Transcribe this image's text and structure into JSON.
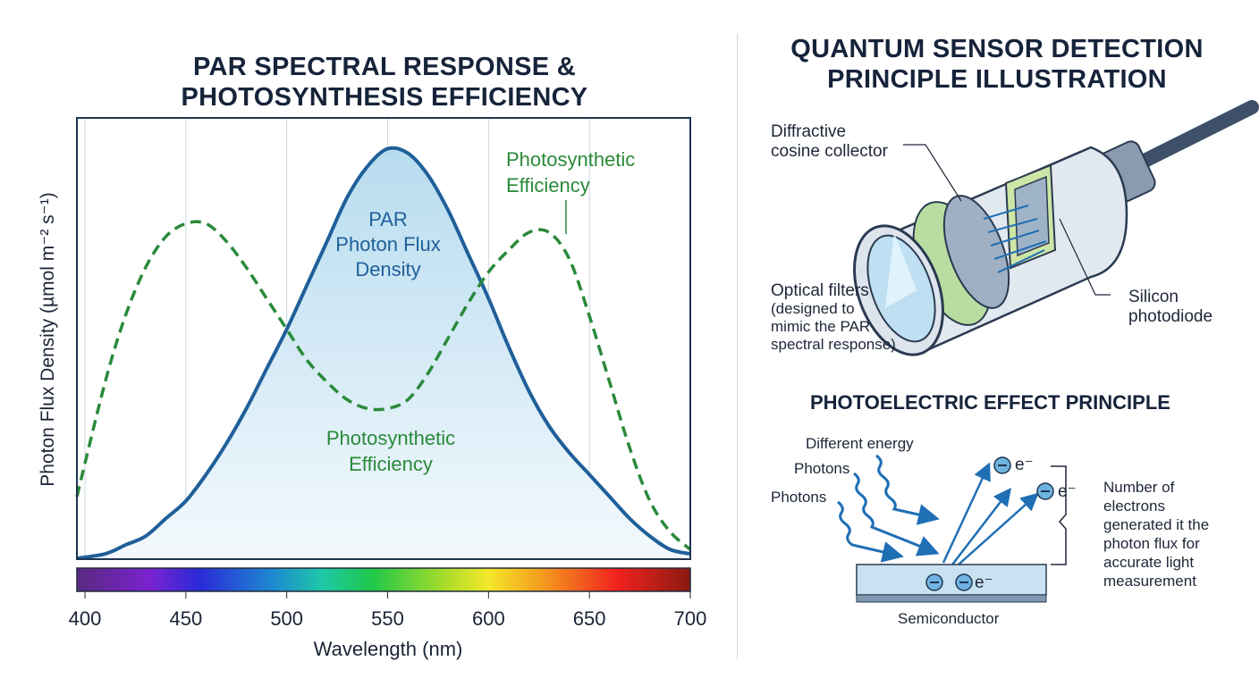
{
  "left_title": [
    "PAR SPECTRAL RESPONSE &",
    "PHOTOSYNTHESIS EFFICIENCY"
  ],
  "right_title": [
    "QUANTUM SENSOR DETECTION",
    "PRINCIPLE ILLUSTRATION"
  ],
  "colors": {
    "par": "#1f5f9a",
    "efficiency": "#2a8a3a",
    "grid": "#c9d6e2",
    "title": "#16233a"
  },
  "chart_data": {
    "type": "line",
    "xlabel": "Wavelength (nm)",
    "ylabel": "Photon Flux Density (µmol m⁻² s⁻¹)",
    "xlim": [
      396,
      700
    ],
    "ylim": [
      0,
      1
    ],
    "xticks": [
      400,
      450,
      500,
      550,
      600,
      650,
      700
    ],
    "grid": "vertical",
    "x": [
      396,
      410,
      420,
      430,
      440,
      450,
      460,
      470,
      480,
      490,
      500,
      510,
      520,
      530,
      540,
      550,
      560,
      570,
      580,
      590,
      600,
      610,
      620,
      630,
      640,
      650,
      660,
      670,
      680,
      690,
      700
    ],
    "series": [
      {
        "name": "PAR Photon Flux Density",
        "style": "solid-filled",
        "values": [
          0.0,
          0.01,
          0.03,
          0.05,
          0.09,
          0.13,
          0.19,
          0.26,
          0.34,
          0.43,
          0.52,
          0.62,
          0.72,
          0.82,
          0.89,
          0.93,
          0.92,
          0.87,
          0.79,
          0.69,
          0.59,
          0.48,
          0.38,
          0.3,
          0.24,
          0.19,
          0.14,
          0.09,
          0.05,
          0.02,
          0.01
        ]
      },
      {
        "name": "Photosynthetic Efficiency",
        "style": "dashed",
        "values": [
          0.14,
          0.4,
          0.55,
          0.66,
          0.73,
          0.76,
          0.76,
          0.72,
          0.66,
          0.59,
          0.52,
          0.45,
          0.4,
          0.36,
          0.34,
          0.34,
          0.36,
          0.42,
          0.5,
          0.58,
          0.65,
          0.7,
          0.74,
          0.74,
          0.68,
          0.55,
          0.4,
          0.25,
          0.13,
          0.06,
          0.02
        ]
      }
    ],
    "annotations": {
      "par": [
        "PAR",
        "Photon Flux",
        "Density"
      ],
      "efficiency_center": [
        "Photosynthetic",
        "Efficiency"
      ],
      "efficiency_right": [
        "Photosynthetic",
        "Efficiency"
      ]
    },
    "spectrum_bar": "visible spectrum 400-700 nm"
  },
  "sensor": {
    "collector_label": [
      "Diffractive",
      "cosine collector"
    ],
    "filters_label": [
      "Optical filters",
      "(designed to",
      "mimic the PAR",
      "spectral response)"
    ],
    "photodiode_label": [
      "Silicon",
      "photodiode"
    ]
  },
  "photoelectric": {
    "title": "PHOTOELECTRIC EFFECT PRINCIPLE",
    "energy_label": "Different energy",
    "photons_1": "Photons",
    "photons_2": "Photons",
    "electron": "e⁻",
    "semiconductor": "Semiconductor",
    "note": [
      "Number of",
      "electrons",
      "generated it the",
      "photon flux for",
      "accurate light",
      "measurement"
    ]
  }
}
